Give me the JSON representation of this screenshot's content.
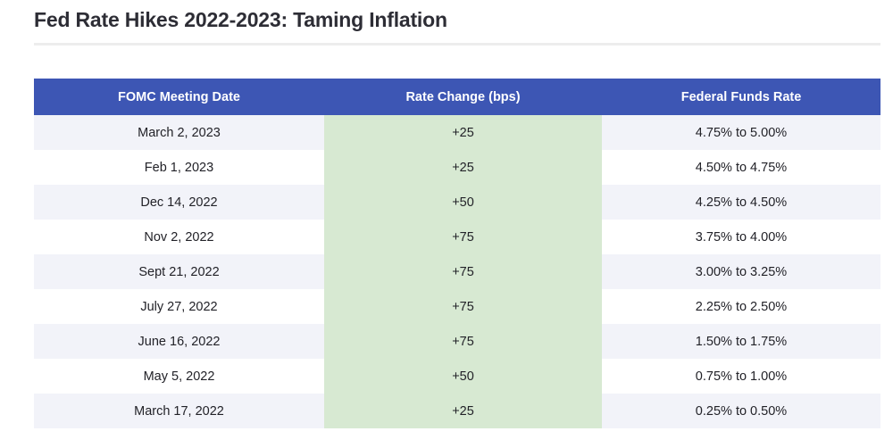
{
  "page": {
    "title": "Fed Rate Hikes 2022-2023: Taming Inflation"
  },
  "table": {
    "columns": [
      {
        "label": "FOMC Meeting Date"
      },
      {
        "label": "Rate Change (bps)"
      },
      {
        "label": "Federal Funds Rate"
      }
    ],
    "rows": [
      {
        "date": "March 2, 2023",
        "change": "+25",
        "rate": "4.75% to 5.00%"
      },
      {
        "date": "Feb 1, 2023",
        "change": "+25",
        "rate": "4.50% to 4.75%"
      },
      {
        "date": "Dec 14, 2022",
        "change": "+50",
        "rate": "4.25% to 4.50%"
      },
      {
        "date": "Nov 2, 2022",
        "change": "+75",
        "rate": "3.75% to 4.00%"
      },
      {
        "date": "Sept 21, 2022",
        "change": "+75",
        "rate": "3.00% to 3.25%"
      },
      {
        "date": "July 27, 2022",
        "change": "+75",
        "rate": "2.25% to 2.50%"
      },
      {
        "date": "June 16, 2022",
        "change": "+75",
        "rate": "1.50% to 1.75%"
      },
      {
        "date": "May 5, 2022",
        "change": "+50",
        "rate": "0.75% to 1.00%"
      },
      {
        "date": "March 17, 2022",
        "change": "+25",
        "rate": "0.25% to 0.50%"
      }
    ],
    "colors": {
      "header_bg": "#3d56b4",
      "header_text": "#ffffff",
      "highlight_column_bg": "#d7e9d2",
      "row_alt_bg": "#f2f3f9",
      "row_bg": "#ffffff",
      "body_text": "#222228",
      "title_text": "#2d2d35"
    }
  }
}
